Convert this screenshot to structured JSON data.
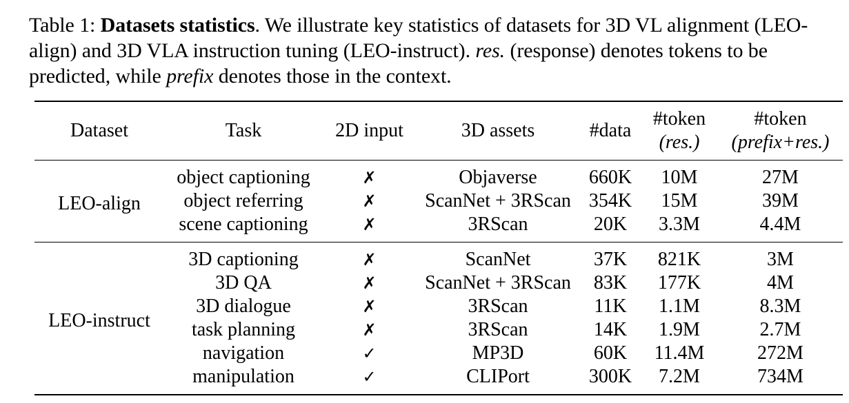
{
  "caption": {
    "table_label": "Table 1:",
    "title_bold": "Datasets statistics",
    "text_1": ". We illustrate key statistics of datasets for 3D VL alignment (LEO-align) and 3D VLA instruction tuning (LEO-instruct). ",
    "res_italic": "res.",
    "text_2": " (response) denotes tokens to be predicted, while ",
    "prefix_italic": "prefix",
    "text_3": " denotes those in the context."
  },
  "table": {
    "headers": {
      "dataset": "Dataset",
      "task": "Task",
      "input_2d": "2D input",
      "assets_3d": "3D assets",
      "data": "#data",
      "token_res_top": "#token",
      "token_res_bottom": "(res.)",
      "token_prefix_top": "#token",
      "token_prefix_bottom": "(prefix+res.)"
    },
    "groups": [
      {
        "dataset": "LEO-align",
        "rows": [
          {
            "task": "object captioning",
            "input_2d": "✗",
            "assets": "Objaverse",
            "data": "660K",
            "token_res": "10M",
            "token_prefix": "27M"
          },
          {
            "task": "object referring",
            "input_2d": "✗",
            "assets": "ScanNet + 3RScan",
            "data": "354K",
            "token_res": "15M",
            "token_prefix": "39M"
          },
          {
            "task": "scene captioning",
            "input_2d": "✗",
            "assets": "3RScan",
            "data": "20K",
            "token_res": "3.3M",
            "token_prefix": "4.4M"
          }
        ]
      },
      {
        "dataset": "LEO-instruct",
        "rows": [
          {
            "task": "3D captioning",
            "input_2d": "✗",
            "assets": "ScanNet",
            "data": "37K",
            "token_res": "821K",
            "token_prefix": "3M"
          },
          {
            "task": "3D QA",
            "input_2d": "✗",
            "assets": "ScanNet + 3RScan",
            "data": "83K",
            "token_res": "177K",
            "token_prefix": "4M"
          },
          {
            "task": "3D dialogue",
            "input_2d": "✗",
            "assets": "3RScan",
            "data": "11K",
            "token_res": "1.1M",
            "token_prefix": "8.3M"
          },
          {
            "task": "task planning",
            "input_2d": "✗",
            "assets": "3RScan",
            "data": "14K",
            "token_res": "1.9M",
            "token_prefix": "2.7M"
          },
          {
            "task": "navigation",
            "input_2d": "✓",
            "assets": "MP3D",
            "data": "60K",
            "token_res": "11.4M",
            "token_prefix": "272M"
          },
          {
            "task": "manipulation",
            "input_2d": "✓",
            "assets": "CLIPort",
            "data": "300K",
            "token_res": "7.2M",
            "token_prefix": "734M"
          }
        ]
      }
    ]
  }
}
